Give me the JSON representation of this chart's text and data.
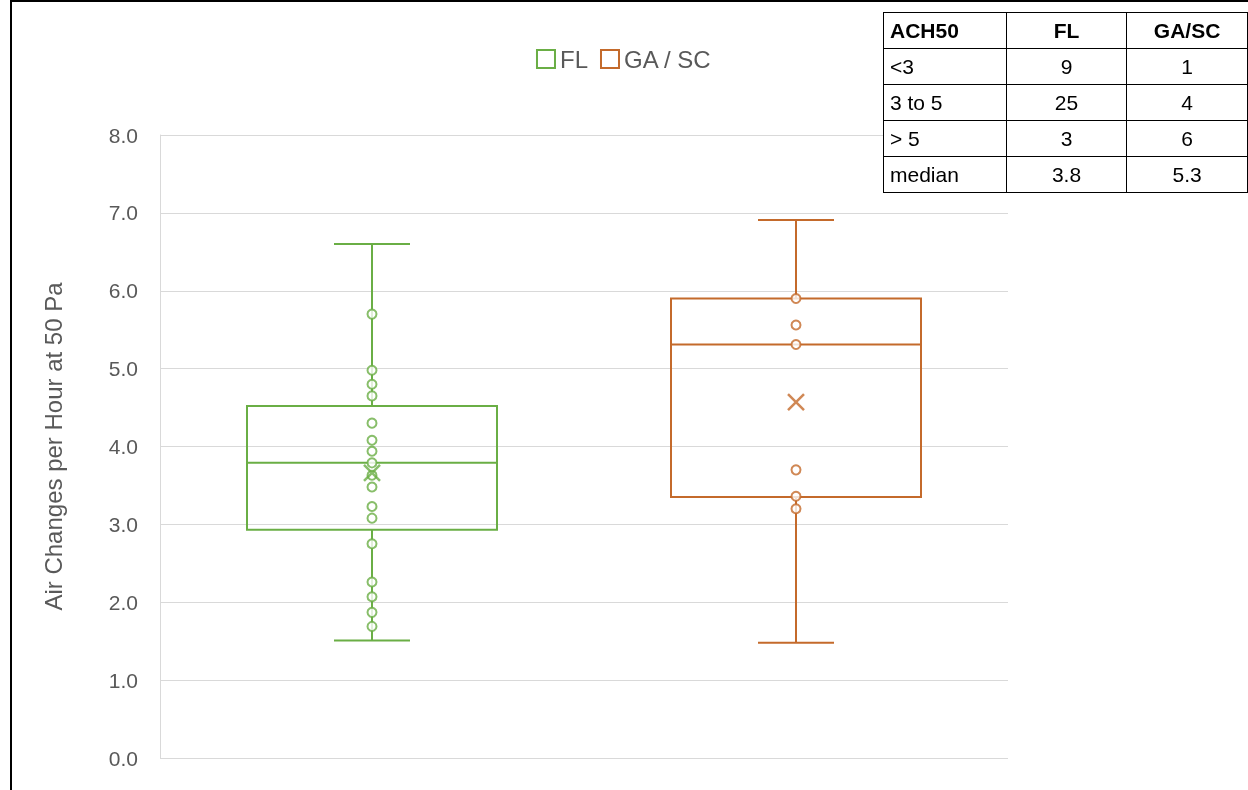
{
  "chart_data": {
    "type": "box",
    "ylabel": "Air Changes per Hour at 50 Pa",
    "categories": [
      null,
      null
    ],
    "ylim": [
      0,
      8
    ],
    "yticks": [
      {
        "value": 0,
        "label": "0.0"
      },
      {
        "value": 1,
        "label": "1.0"
      },
      {
        "value": 2,
        "label": "2.0"
      },
      {
        "value": 3,
        "label": "3.0"
      },
      {
        "value": 4,
        "label": "4.0"
      },
      {
        "value": 5,
        "label": "5.0"
      },
      {
        "value": 6,
        "label": "6.0"
      },
      {
        "value": 7,
        "label": "7.0"
      },
      {
        "value": 8,
        "label": "8.0"
      }
    ],
    "grid": "y",
    "legend": "top",
    "tick_labels": "y",
    "marker": "circle",
    "series": [
      {
        "name": "FL",
        "color": "#6aae45",
        "boxes": [
          {
            "low": 1.51,
            "q1": 2.93,
            "median": 3.79,
            "q3": 4.52,
            "high": 6.6,
            "mean": 3.66,
            "outliers": [
              5.7,
              4.98,
              4.8,
              4.65,
              4.3,
              4.08,
              3.94,
              3.79,
              3.63,
              3.48,
              3.23,
              3.08,
              2.75,
              2.26,
              2.07,
              1.87,
              1.69
            ]
          },
          null
        ]
      },
      {
        "name": "GA / SC",
        "color": "#c46a2b",
        "boxes": [
          null,
          {
            "low": 1.48,
            "q1": 3.35,
            "median": 5.31,
            "q3": 5.9,
            "high": 6.91,
            "mean": 4.57,
            "outliers": [
              5.9,
              5.56,
              5.31,
              3.7,
              3.36,
              3.2
            ]
          }
        ]
      }
    ],
    "annotations": [
      "ACH50",
      "FL",
      "GA/SC",
      "<3",
      "9",
      "1",
      "3 to 5",
      "25",
      "4",
      "> 5",
      "3",
      "6",
      "median",
      "3.8",
      "5.3"
    ]
  }
}
